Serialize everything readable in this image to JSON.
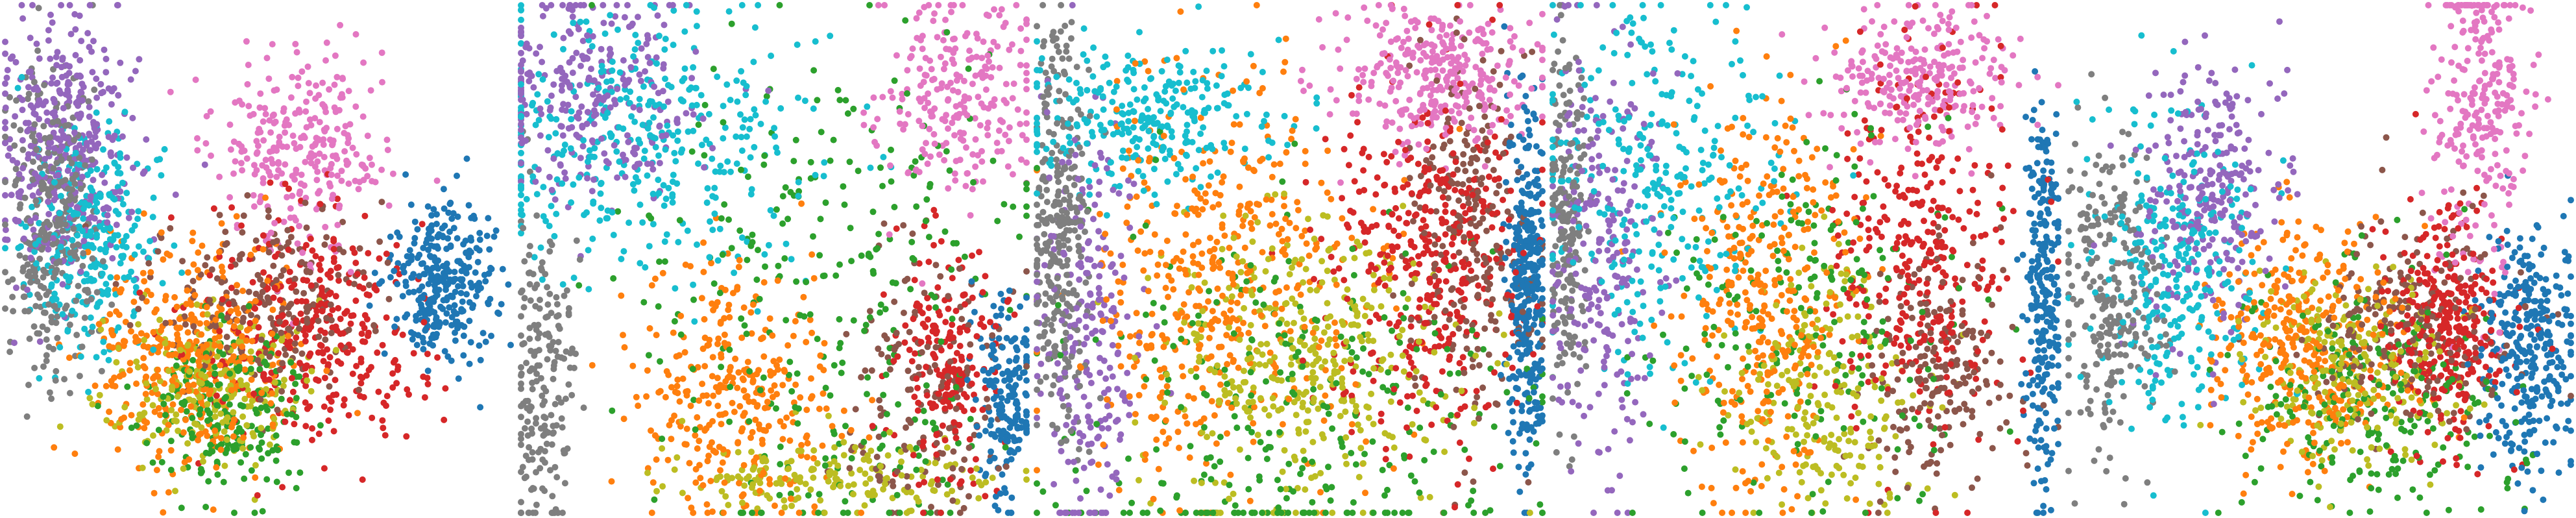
{
  "chart_data": [
    {
      "type": "scatter",
      "panel_index": 1,
      "title": "",
      "xlabel": "",
      "ylabel": "",
      "axes_visible": false,
      "grid": false,
      "legend": "none",
      "xlim": [
        0,
        100
      ],
      "ylim": [
        0,
        100
      ],
      "point_counts": {
        "purple": 380,
        "cyan": 280,
        "gray": 340,
        "orange": 380,
        "olive": 220,
        "green": 220,
        "red": 340,
        "brown": 220,
        "blue": 300,
        "pink": 280
      },
      "clusters": [
        {
          "color": "#9467bd",
          "center": [
            12,
            72
          ],
          "spread": [
            7,
            13
          ]
        },
        {
          "color": "#17becf",
          "center": [
            17,
            54
          ],
          "spread": [
            7,
            11
          ]
        },
        {
          "color": "#7f7f7f",
          "center": [
            9,
            56
          ],
          "spread": [
            5,
            15
          ]
        },
        {
          "color": "#ff7f0e",
          "center": [
            37,
            30
          ],
          "spread": [
            10,
            11
          ]
        },
        {
          "color": "#bcbd22",
          "center": [
            40,
            25
          ],
          "spread": [
            9,
            7
          ]
        },
        {
          "color": "#2ca02c",
          "center": [
            43,
            20
          ],
          "spread": [
            8,
            8
          ]
        },
        {
          "color": "#d62728",
          "center": [
            62,
            36
          ],
          "spread": [
            11,
            11
          ]
        },
        {
          "color": "#8c564b",
          "center": [
            52,
            42
          ],
          "spread": [
            11,
            9
          ]
        },
        {
          "color": "#1f77b4",
          "center": [
            87,
            45
          ],
          "spread": [
            5,
            8
          ]
        },
        {
          "color": "#e377c2",
          "center": [
            58,
            71
          ],
          "spread": [
            8,
            10
          ]
        }
      ]
    },
    {
      "type": "scatter",
      "panel_index": 2,
      "title": "",
      "xlabel": "",
      "ylabel": "",
      "axes_visible": false,
      "grid": false,
      "legend": "none",
      "xlim": [
        0,
        100
      ],
      "ylim": [
        0,
        100
      ],
      "point_counts": {
        "purple": 280,
        "cyan": 380,
        "gray": 200,
        "orange": 320,
        "olive": 180,
        "green": 300,
        "red": 200,
        "brown": 160,
        "blue": 180,
        "pink": 240
      },
      "clusters": [
        {
          "color": "#9467bd",
          "center": [
            14,
            82
          ],
          "spread": [
            12,
            10
          ]
        },
        {
          "color": "#17becf",
          "center": [
            24,
            74
          ],
          "spread": [
            18,
            13
          ]
        },
        {
          "color": "#7f7f7f",
          "center": [
            4,
            26
          ],
          "spread": [
            3,
            16
          ]
        },
        {
          "color": "#ff7f0e",
          "center": [
            42,
            24
          ],
          "spread": [
            10,
            13
          ]
        },
        {
          "color": "#bcbd22",
          "center": [
            60,
            7
          ],
          "spread": [
            16,
            4
          ]
        },
        {
          "color": "#2ca02c",
          "center": [
            62,
            40
          ],
          "spread": [
            20,
            26
          ]
        },
        {
          "color": "#d62728",
          "center": [
            84,
            28
          ],
          "spread": [
            5,
            12
          ]
        },
        {
          "color": "#8c564b",
          "center": [
            80,
            22
          ],
          "spread": [
            8,
            14
          ]
        },
        {
          "color": "#1f77b4",
          "center": [
            96,
            22
          ],
          "spread": [
            3,
            10
          ]
        },
        {
          "color": "#e377c2",
          "center": [
            86,
            82
          ],
          "spread": [
            8,
            10
          ]
        }
      ]
    },
    {
      "type": "scatter",
      "panel_index": 3,
      "title": "",
      "xlabel": "",
      "ylabel": "",
      "axes_visible": false,
      "grid": false,
      "legend": "none",
      "xlim": [
        0,
        100
      ],
      "ylim": [
        0,
        100
      ],
      "point_counts": {
        "purple": 240,
        "cyan": 280,
        "gray": 300,
        "orange": 460,
        "olive": 380,
        "green": 300,
        "red": 400,
        "brown": 240,
        "blue": 340,
        "pink": 320
      },
      "clusters": [
        {
          "color": "#9467bd",
          "center": [
            10,
            35
          ],
          "spread": [
            5,
            22
          ]
        },
        {
          "color": "#17becf",
          "center": [
            22,
            78
          ],
          "spread": [
            12,
            8
          ]
        },
        {
          "color": "#7f7f7f",
          "center": [
            4,
            55
          ],
          "spread": [
            3,
            20
          ]
        },
        {
          "color": "#ff7f0e",
          "center": [
            35,
            45
          ],
          "spread": [
            14,
            21
          ]
        },
        {
          "color": "#bcbd22",
          "center": [
            52,
            30
          ],
          "spread": [
            15,
            16
          ]
        },
        {
          "color": "#2ca02c",
          "center": [
            50,
            20
          ],
          "spread": [
            25,
            20
          ]
        },
        {
          "color": "#d62728",
          "center": [
            78,
            50
          ],
          "spread": [
            10,
            18
          ]
        },
        {
          "color": "#8c564b",
          "center": [
            86,
            55
          ],
          "spread": [
            6,
            18
          ]
        },
        {
          "color": "#1f77b4",
          "center": [
            97,
            45
          ],
          "spread": [
            2,
            18
          ]
        },
        {
          "color": "#e377c2",
          "center": [
            80,
            86
          ],
          "spread": [
            9,
            7
          ]
        }
      ]
    },
    {
      "type": "scatter",
      "panel_index": 4,
      "title": "",
      "xlabel": "",
      "ylabel": "",
      "axes_visible": false,
      "grid": false,
      "legend": "none",
      "xlim": [
        0,
        100
      ],
      "ylim": [
        0,
        100
      ],
      "point_counts": {
        "purple": 260,
        "cyan": 300,
        "gray": 200,
        "orange": 360,
        "olive": 220,
        "green": 220,
        "red": 340,
        "brown": 200,
        "blue": 260,
        "pink": 260
      },
      "clusters": [
        {
          "color": "#9467bd",
          "center": [
            10,
            52
          ],
          "spread": [
            6,
            22
          ]
        },
        {
          "color": "#17becf",
          "center": [
            20,
            66
          ],
          "spread": [
            12,
            18
          ]
        },
        {
          "color": "#7f7f7f",
          "center": [
            3,
            56
          ],
          "spread": [
            2,
            18
          ]
        },
        {
          "color": "#ff7f0e",
          "center": [
            42,
            42
          ],
          "spread": [
            9,
            19
          ]
        },
        {
          "color": "#bcbd22",
          "center": [
            55,
            25
          ],
          "spread": [
            9,
            13
          ]
        },
        {
          "color": "#2ca02c",
          "center": [
            50,
            35
          ],
          "spread": [
            18,
            18
          ]
        },
        {
          "color": "#d62728",
          "center": [
            73,
            52
          ],
          "spread": [
            9,
            18
          ]
        },
        {
          "color": "#8c564b",
          "center": [
            77,
            28
          ],
          "spread": [
            8,
            12
          ]
        },
        {
          "color": "#1f77b4",
          "center": [
            97,
            42
          ],
          "spread": [
            2,
            20
          ]
        },
        {
          "color": "#e377c2",
          "center": [
            72,
            86
          ],
          "spread": [
            10,
            7
          ]
        }
      ]
    },
    {
      "type": "scatter",
      "panel_index": 5,
      "title": "",
      "xlabel": "",
      "ylabel": "",
      "axes_visible": false,
      "grid": false,
      "legend": "none",
      "xlim": [
        0,
        100
      ],
      "ylim": [
        0,
        100
      ],
      "point_counts": {
        "purple": 280,
        "cyan": 300,
        "gray": 260,
        "orange": 360,
        "olive": 240,
        "green": 240,
        "red": 320,
        "brown": 240,
        "blue": 300,
        "pink": 260
      },
      "clusters": [
        {
          "color": "#9467bd",
          "center": [
            28,
            62
          ],
          "spread": [
            7,
            14
          ]
        },
        {
          "color": "#17becf",
          "center": [
            22,
            48
          ],
          "spread": [
            8,
            16
          ]
        },
        {
          "color": "#7f7f7f",
          "center": [
            9,
            40
          ],
          "spread": [
            5,
            16
          ]
        },
        {
          "color": "#ff7f0e",
          "center": [
            47,
            32
          ],
          "spread": [
            9,
            12
          ]
        },
        {
          "color": "#bcbd22",
          "center": [
            55,
            28
          ],
          "spread": [
            10,
            9
          ]
        },
        {
          "color": "#2ca02c",
          "center": [
            60,
            22
          ],
          "spread": [
            14,
            12
          ]
        },
        {
          "color": "#d62728",
          "center": [
            76,
            36
          ],
          "spread": [
            6,
            11
          ]
        },
        {
          "color": "#8c564b",
          "center": [
            67,
            37
          ],
          "spread": [
            11,
            10
          ]
        },
        {
          "color": "#1f77b4",
          "center": [
            92,
            32
          ],
          "spread": [
            5,
            12
          ]
        },
        {
          "color": "#e377c2",
          "center": [
            82,
            78
          ],
          "spread": [
            5,
            16
          ]
        }
      ]
    }
  ]
}
